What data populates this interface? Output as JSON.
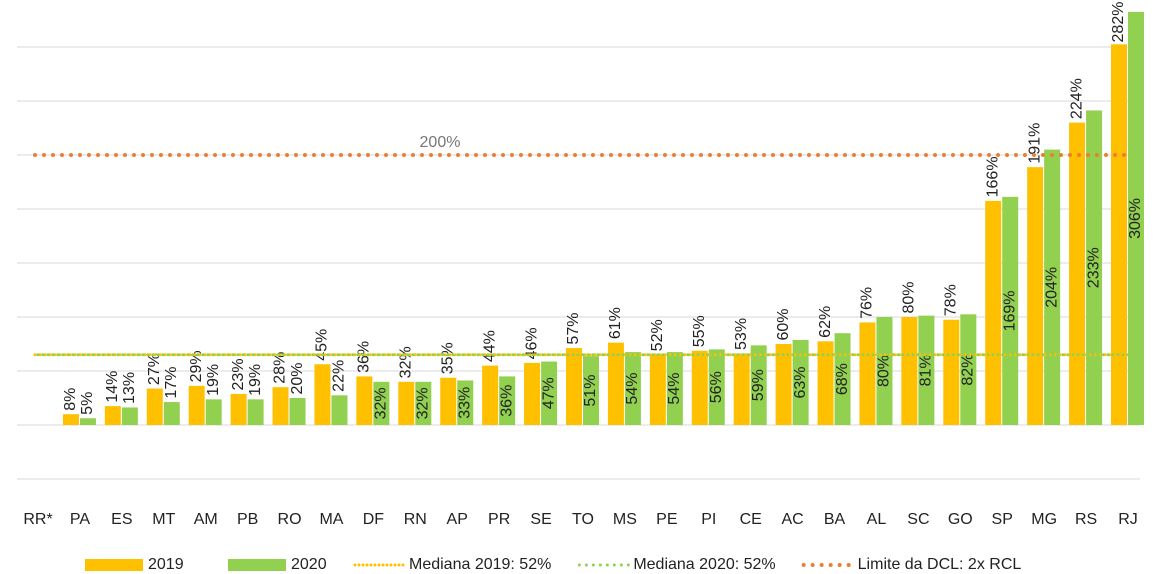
{
  "chart_data": {
    "type": "bar",
    "categories": [
      "RR*",
      "PA",
      "ES",
      "MT",
      "AM",
      "PB",
      "RO",
      "MA",
      "DF",
      "RN",
      "AP",
      "PR",
      "SE",
      "TO",
      "MS",
      "PE",
      "PI",
      "CE",
      "AC",
      "BA",
      "AL",
      "SC",
      "GO",
      "SP",
      "MG",
      "RS",
      "RJ"
    ],
    "series": [
      {
        "name": "2019",
        "color": "#FFC000",
        "values": [
          null,
          8,
          14,
          27,
          29,
          23,
          28,
          45,
          36,
          32,
          35,
          44,
          46,
          57,
          61,
          52,
          55,
          53,
          60,
          62,
          76,
          80,
          78,
          166,
          191,
          224,
          282
        ],
        "value_labels": [
          null,
          "8%",
          "14%",
          "27%",
          "29%",
          "23%",
          "28%",
          "45%",
          "36%",
          "32%",
          "35%",
          "44%",
          "46%",
          "57%",
          "61%",
          "52%",
          "55%",
          "53%",
          "60%",
          "62%",
          "76%",
          "80%",
          "78%",
          "166%",
          "191%",
          "224%",
          "282%"
        ]
      },
      {
        "name": "2020",
        "color": "#92D050",
        "values": [
          null,
          5,
          13,
          17,
          19,
          19,
          20,
          22,
          32,
          32,
          33,
          36,
          47,
          51,
          54,
          54,
          56,
          59,
          63,
          68,
          80,
          81,
          82,
          169,
          204,
          233,
          306
        ],
        "value_labels": [
          null,
          "5%",
          "13%",
          "17%",
          "19%",
          "19%",
          "20%",
          "22%",
          "32%",
          "32%",
          "33%",
          "36%",
          "47%",
          "51%",
          "54%",
          "54%",
          "56%",
          "59%",
          "63%",
          "68%",
          "80%",
          "81%",
          "82%",
          "169%",
          "204%",
          "233%",
          "306%"
        ]
      }
    ],
    "reference_lines": [
      {
        "name": "Mediana 2019: 52%",
        "value": 52,
        "color": "#FFC000",
        "style": "dotted"
      },
      {
        "name": "Mediana 2020: 52%",
        "value": 52,
        "color": "#92D050",
        "style": "dotted"
      },
      {
        "name": "Limite da DCL: 2x RCL",
        "value": 200,
        "label": "200%",
        "color": "#ED7D31",
        "style": "dotted"
      }
    ],
    "ylim": [
      -40,
      310
    ],
    "yticks": [
      -40,
      0,
      40,
      80,
      120,
      160,
      200,
      240,
      280
    ],
    "grid": true,
    "legend": "bottom"
  }
}
